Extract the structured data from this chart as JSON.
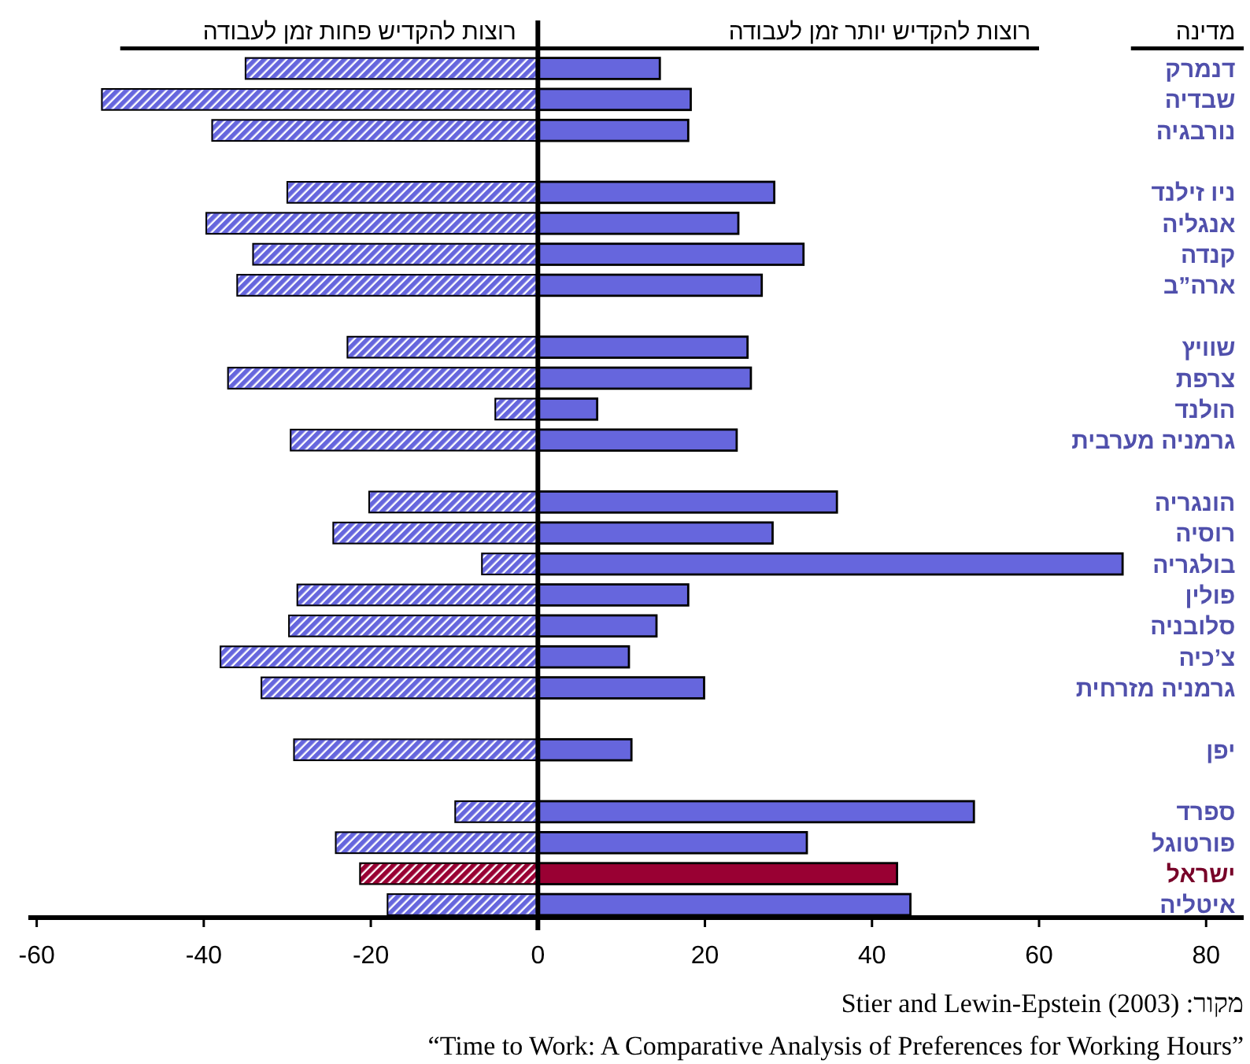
{
  "chart_data": {
    "type": "bar",
    "orientation": "horizontal",
    "stacked": true,
    "ylabel": "מדינה",
    "categories": [
      "דנמרק",
      "שבדיה",
      "נורבגיה",
      null,
      "ניו זילנד",
      "אנגליה",
      "קנדה",
      "ארה”ב",
      null,
      "שוויץ",
      "צרפת",
      "הולנד",
      "גרמניה מערבית",
      null,
      "הונגריה",
      "רוסיה",
      "בולגריה",
      "פולין",
      "סלובניה",
      "צ’כיה",
      "גרמניה מזרחית",
      null,
      "יפן",
      null,
      "ספרד",
      "פורטוגל",
      "ישראל",
      "איטליה"
    ],
    "series": [
      {
        "name": "רוצות להקדיש יותר זמן לעבודה",
        "colors": [
          "#6666dd",
          "#6666dd",
          "#6666dd",
          null,
          "#6666dd",
          "#6666dd",
          "#6666dd",
          "#6666dd",
          null,
          "#6666dd",
          "#6666dd",
          "#6666dd",
          "#6666dd",
          null,
          "#6666dd",
          "#6666dd",
          "#6666dd",
          "#6666dd",
          "#6666dd",
          "#6666dd",
          "#6666dd",
          null,
          "#6666dd",
          null,
          "#6666dd",
          "#6666dd",
          "#990033",
          "#6666dd"
        ],
        "values": [
          14.6,
          18.3,
          18,
          null,
          28.3,
          24,
          31.8,
          26.8,
          null,
          25.1,
          25.5,
          7.1,
          23.8,
          null,
          35.8,
          28.1,
          70,
          18,
          14.2,
          10.9,
          19.9,
          null,
          11.2,
          null,
          52.2,
          32.2,
          43,
          44.6
        ]
      },
      {
        "name": "רוצות להקדיש פחות זמן לעבודה",
        "colors": [
          "#6666dd",
          "#6666dd",
          "#6666dd",
          null,
          "#6666dd",
          "#6666dd",
          "#6666dd",
          "#6666dd",
          null,
          "#6666dd",
          "#6666dd",
          "#6666dd",
          "#6666dd",
          null,
          "#6666dd",
          "#6666dd",
          "#6666dd",
          "#6666dd",
          "#6666dd",
          "#6666dd",
          "#6666dd",
          null,
          "#6666dd",
          null,
          "#6666dd",
          "#6666dd",
          "#990033",
          "#6666dd"
        ],
        "values": [
          -35,
          -52.2,
          -39,
          null,
          -30,
          -39.7,
          -34.1,
          -36,
          null,
          -22.8,
          -37.1,
          -5.1,
          -29.6,
          null,
          -20.2,
          -24.5,
          -6.7,
          -28.8,
          -29.8,
          -38,
          -33.1,
          null,
          -29.2,
          null,
          -9.9,
          -24.2,
          -21.3,
          -18
        ]
      }
    ],
    "xlim": [
      -61,
      84.5
    ],
    "xticks": [
      -60,
      -40,
      -20,
      0,
      20,
      40,
      60,
      80
    ],
    "annotations": [
      "מקור: Stier and Lewin-Epstein (2003)",
      "“Time to Work: A Comparative Analysis of Preferences for Working Hours”"
    ]
  }
}
